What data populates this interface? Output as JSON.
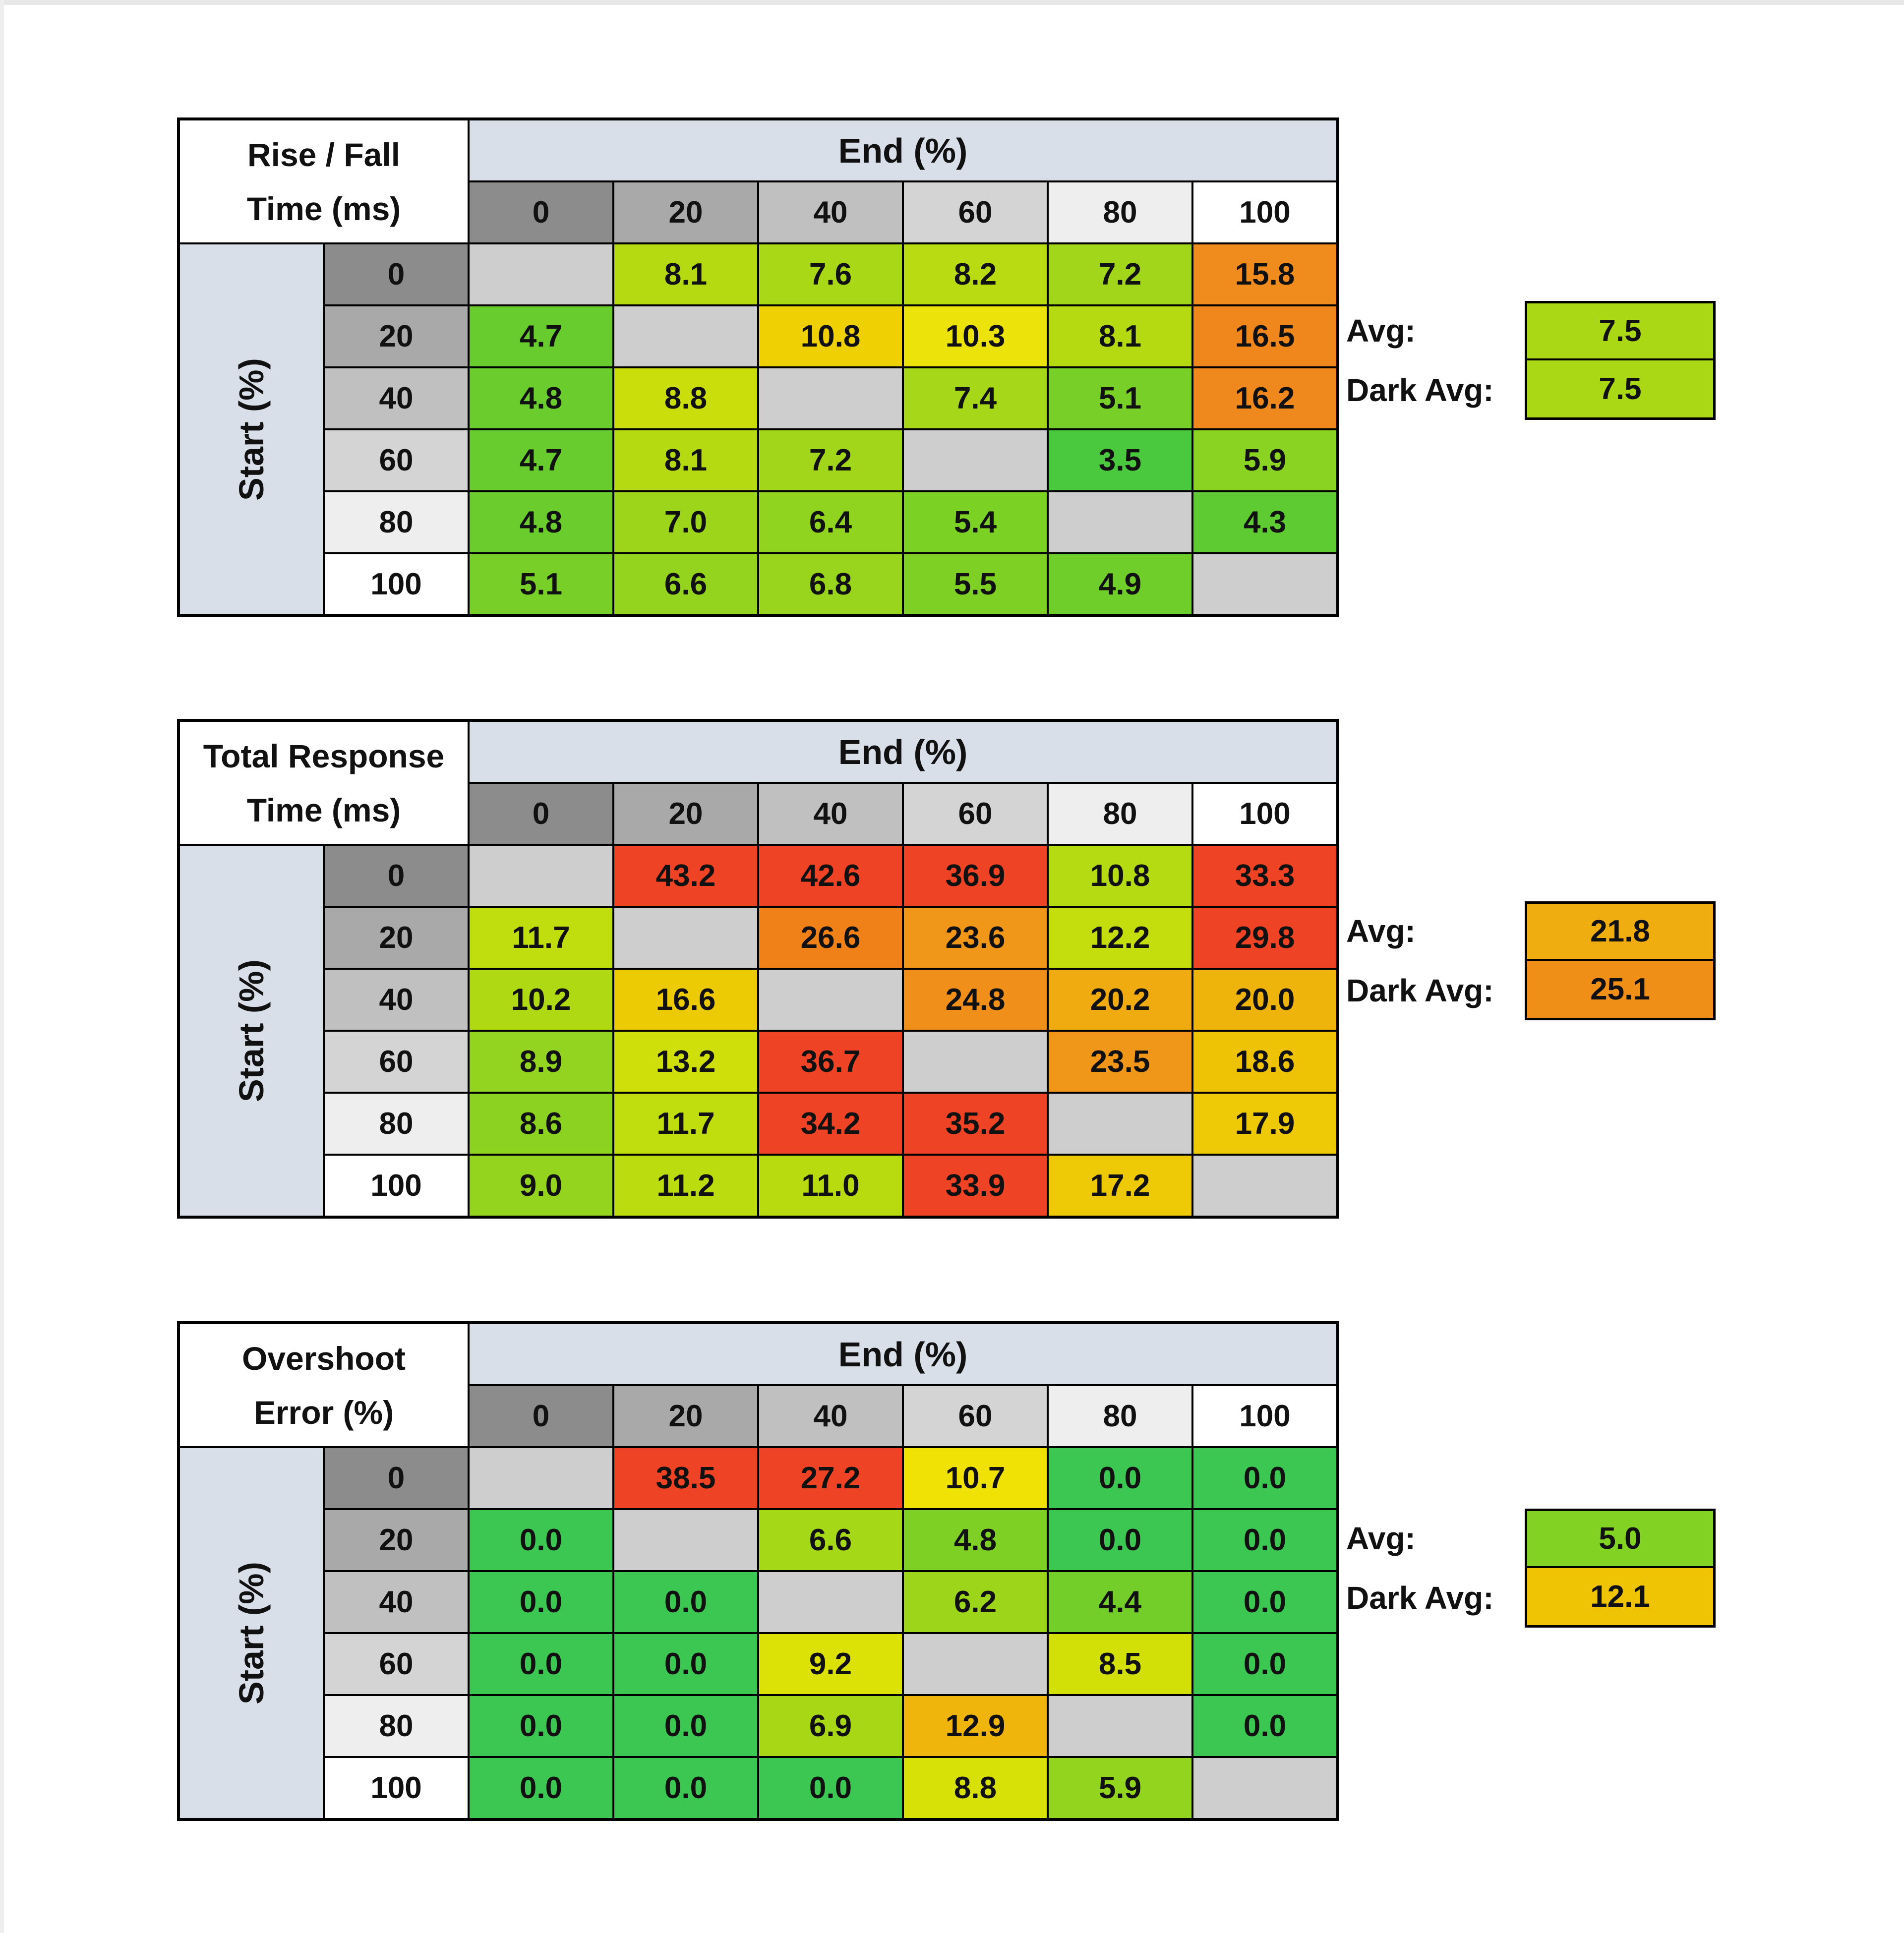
{
  "labels": {
    "avg": "Avg:",
    "dark_avg": "Dark Avg:",
    "col_axis": "End (%)",
    "row_axis": "Start (%)"
  },
  "style": {
    "band_color": "#d9dfe8",
    "diagonal_color": "#cfcece",
    "border_color": "#000000",
    "header_grays": [
      "#8c8c8c",
      "#a9a9a9",
      "#c0c0c0",
      "#d4d4d4",
      "#eeeeee",
      "#ffffff"
    ]
  },
  "chart_data": [
    {
      "type": "heatmap",
      "title_line1": "Rise / Fall",
      "title_line2": "Time (ms)",
      "col_axis_label": "End (%)",
      "row_axis_label": "Start (%)",
      "columns": [
        "0",
        "20",
        "40",
        "60",
        "80",
        "100"
      ],
      "rows": [
        "0",
        "20",
        "40",
        "60",
        "80",
        "100"
      ],
      "values": [
        [
          null,
          8.1,
          7.6,
          8.2,
          7.2,
          15.8
        ],
        [
          4.7,
          null,
          10.8,
          10.3,
          8.1,
          16.5
        ],
        [
          4.8,
          8.8,
          null,
          7.4,
          5.1,
          16.2
        ],
        [
          4.7,
          8.1,
          7.2,
          null,
          3.5,
          5.9
        ],
        [
          4.8,
          7.0,
          6.4,
          5.4,
          null,
          4.3
        ],
        [
          5.1,
          6.6,
          6.8,
          5.5,
          4.9,
          null
        ]
      ],
      "cell_colors": [
        [
          null,
          "#b5da12",
          "#a9d817",
          "#b9db11",
          "#a2d61a",
          "#f08c1e"
        ],
        [
          "#68cc2e",
          null,
          "#efd103",
          "#ece30a",
          "#b5da12",
          "#f0871c"
        ],
        [
          "#6acd2d",
          "#cade0b",
          null,
          "#a6d718",
          "#77cf27",
          "#f0891d"
        ],
        [
          "#68cc2e",
          "#b5da12",
          "#a2d61a",
          null,
          "#4ac83e",
          "#8ad322"
        ],
        [
          "#6acd2d",
          "#9dd51b",
          "#91d420",
          "#7cd125",
          null,
          "#5fcb33"
        ],
        [
          "#77cf27",
          "#94d41e",
          "#98d51c",
          "#7ed124",
          "#70ce2a",
          null
        ]
      ],
      "avg": "7.5",
      "avg_color": "#abd815",
      "dark_avg": "7.5",
      "dark_avg_color": "#abd815"
    },
    {
      "type": "heatmap",
      "title_line1": "Total Response",
      "title_line2": "Time (ms)",
      "col_axis_label": "End (%)",
      "row_axis_label": "Start (%)",
      "columns": [
        "0",
        "20",
        "40",
        "60",
        "80",
        "100"
      ],
      "rows": [
        "0",
        "20",
        "40",
        "60",
        "80",
        "100"
      ],
      "values": [
        [
          null,
          43.2,
          42.6,
          36.9,
          10.8,
          33.3
        ],
        [
          11.7,
          null,
          26.6,
          23.6,
          12.2,
          29.8
        ],
        [
          10.2,
          16.6,
          null,
          24.8,
          20.2,
          20.0
        ],
        [
          8.9,
          13.2,
          36.7,
          null,
          23.5,
          18.6
        ],
        [
          8.6,
          11.7,
          34.2,
          35.2,
          null,
          17.9
        ],
        [
          9.0,
          11.2,
          11.0,
          33.9,
          17.2,
          null
        ]
      ],
      "cell_colors": [
        [
          null,
          "#ee4425",
          "#ee4425",
          "#ee4425",
          "#b5db12",
          "#ee4425"
        ],
        [
          "#c0dd0e",
          null,
          "#f08119",
          "#f0971a",
          "#c4de0d",
          "#ee4425"
        ],
        [
          "#aed913",
          "#edcb04",
          null,
          "#f08f19",
          "#f0ab10",
          "#efb40c"
        ],
        [
          "#92d41f",
          "#cedf0a",
          "#ee4425",
          null,
          "#f0971a",
          "#eec306"
        ],
        [
          "#8cd321",
          "#c0dd0e",
          "#ee4425",
          "#ee4425",
          null,
          "#edc906"
        ],
        [
          "#95d41e",
          "#bbdc0f",
          "#b8db10",
          "#ee4425",
          "#edc906",
          null
        ]
      ],
      "avg": "21.8",
      "avg_color": "#f0ad0f",
      "dark_avg": "25.1",
      "dark_avg_color": "#f08f17"
    },
    {
      "type": "heatmap",
      "title_line1": "Overshoot",
      "title_line2": "Error (%)",
      "col_axis_label": "End (%)",
      "row_axis_label": "Start (%)",
      "columns": [
        "0",
        "20",
        "40",
        "60",
        "80",
        "100"
      ],
      "rows": [
        "0",
        "20",
        "40",
        "60",
        "80",
        "100"
      ],
      "values": [
        [
          null,
          38.5,
          27.2,
          10.7,
          0.0,
          0.0
        ],
        [
          0.0,
          null,
          6.6,
          4.8,
          0.0,
          0.0
        ],
        [
          0.0,
          0.0,
          null,
          6.2,
          4.4,
          0.0
        ],
        [
          0.0,
          0.0,
          9.2,
          null,
          8.5,
          0.0
        ],
        [
          0.0,
          0.0,
          6.9,
          12.9,
          null,
          0.0
        ],
        [
          0.0,
          0.0,
          0.0,
          8.8,
          5.9,
          null
        ]
      ],
      "cell_colors": [
        [
          null,
          "#ee4425",
          "#ee4425",
          "#f0e205",
          "#3cc752",
          "#3cc752"
        ],
        [
          "#3cc752",
          null,
          "#a5d816",
          "#7ed124",
          "#3cc752",
          "#3cc752"
        ],
        [
          "#3cc752",
          "#3cc752",
          null,
          "#9dd51b",
          "#73ce29",
          "#3cc752"
        ],
        [
          "#3cc752",
          "#3cc752",
          "#dce206",
          null,
          "#d2e008",
          "#3cc752"
        ],
        [
          "#3cc752",
          "#3cc752",
          "#a8d815",
          "#f0b50c",
          null,
          "#3cc752"
        ],
        [
          "#3cc752",
          "#3cc752",
          "#3cc752",
          "#d7e107",
          "#93d41e",
          null
        ]
      ],
      "avg": "5.0",
      "avg_color": "#82d223",
      "dark_avg": "12.1",
      "dark_avg_color": "#efc404"
    }
  ]
}
